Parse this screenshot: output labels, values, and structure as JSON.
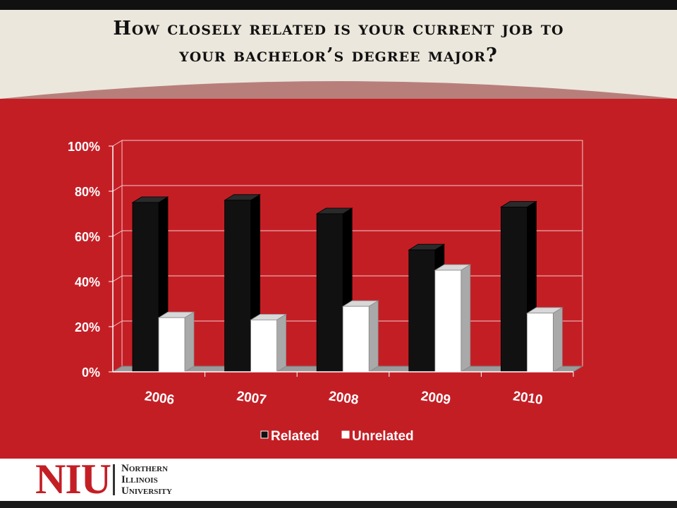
{
  "title_line1": "How closely related is your current job to",
  "title_line2": "your bachelor’s degree major?",
  "logo": {
    "mark": "NIU",
    "line1": "Northern",
    "line2": "Illinois",
    "line3": "University"
  },
  "colors": {
    "panel": "#c41e25",
    "related": "#111111",
    "unrelated": "#ffffff",
    "header": "#ece7dc"
  },
  "chart_data": {
    "type": "bar",
    "categories": [
      "2006",
      "2007",
      "2008",
      "2009",
      "2010"
    ],
    "series": [
      {
        "name": "Related",
        "values": [
          75,
          76,
          70,
          54,
          73
        ]
      },
      {
        "name": "Unrelated",
        "values": [
          24,
          23,
          29,
          45,
          26
        ]
      }
    ],
    "ylim": [
      0,
      100
    ],
    "yticks": [
      "0%",
      "20%",
      "40%",
      "60%",
      "80%",
      "100%"
    ],
    "grid": true,
    "legend": "bottom",
    "style": "3d-clustered-column"
  }
}
